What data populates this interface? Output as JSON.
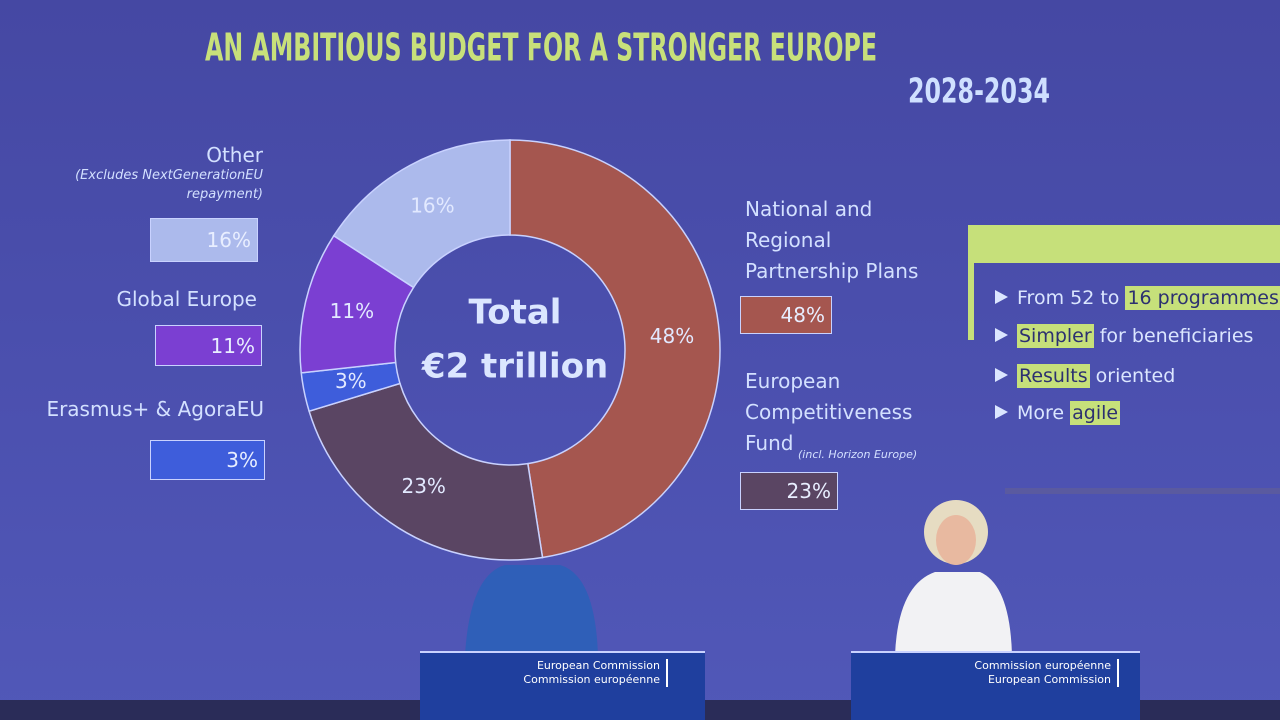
{
  "chart_data": {
    "type": "pie",
    "title": "AN AMBITIOUS BUDGET FOR A STRONGER EUROPE",
    "subtitle": "2028-2034",
    "center_label": [
      "Total",
      "€2 trillion"
    ],
    "categories": [
      "National and Regional Partnership Plans",
      "European Competitiveness Fund",
      "Erasmus+ & AgoraEU",
      "Global Europe",
      "Other"
    ],
    "values": [
      48,
      23,
      3,
      11,
      16
    ],
    "value_labels": [
      "48%",
      "23%",
      "3%",
      "11%",
      "16%"
    ],
    "colors": [
      "#a5564f",
      "#5a4563",
      "#3e5ddb",
      "#7b3fd2",
      "#acbaec"
    ],
    "annotations": [
      "(Excludes NextGenerationEU repayment)",
      "(incl. Horizon Europe)"
    ]
  },
  "bullets": [
    [
      {
        "text": "From 52 to "
      },
      {
        "text": "16 programmes",
        "highlight": true
      }
    ],
    [
      {
        "text": "Simpler",
        "highlight": true
      },
      {
        "text": " for beneficiaries"
      }
    ],
    [
      {
        "text": "Results",
        "highlight": true
      },
      {
        "text": " oriented"
      }
    ],
    [
      {
        "text": "More "
      },
      {
        "text": "agile",
        "highlight": true
      }
    ]
  ],
  "podiums": [
    [
      "European Commission",
      "Commission européenne"
    ],
    [
      "Commission européenne",
      "European Commission"
    ]
  ]
}
